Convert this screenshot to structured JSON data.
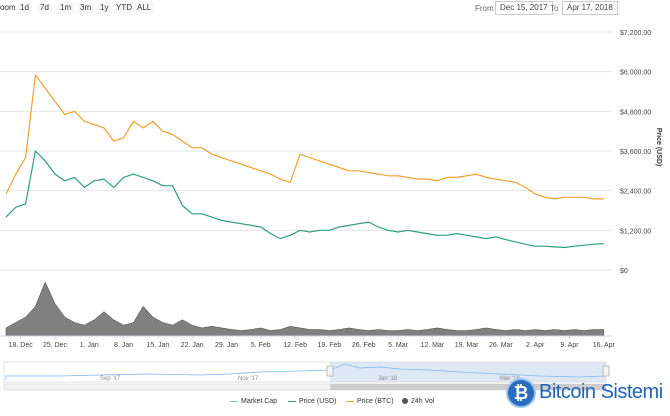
{
  "toolbar": {
    "zoom_label": "oom",
    "buttons": [
      "1d",
      "7d",
      "1m",
      "3m",
      "1y",
      "YTD",
      "ALL"
    ],
    "from_label": "From",
    "from_value": "Dec 15, 2017",
    "to_label": "To",
    "to_value": "Apr 17, 2018"
  },
  "watermark": {
    "text": "Bitcoin Sistemi"
  },
  "chart_data": {
    "type": "line",
    "x_labels": [
      "18. Dec",
      "25. Dec",
      "1. Jan",
      "8. Jan",
      "15. Jan",
      "22. Jan",
      "29. Jan",
      "5. Feb",
      "12. Feb",
      "19. Feb",
      "26. Feb",
      "5. Mar",
      "12. Mar",
      "19. Mar",
      "26. Mar",
      "2. Apr",
      "9. Apr",
      "16. Apr"
    ],
    "x_start_date": "2017-12-15",
    "y_right": {
      "label": "Price (USD)",
      "ticks": [
        "$0",
        "$1,200.00",
        "$2,400.00",
        "$3,600.00",
        "$4,800.00",
        "$6,000.00",
        "$7,200.00"
      ],
      "range": [
        0,
        7200
      ]
    },
    "navigator_labels": [
      "Sep '17",
      "Nov '17",
      "Jan '18",
      "Mar '18"
    ],
    "legend": [
      {
        "name": "Market Cap",
        "color": "#7cb5ec",
        "kind": "line"
      },
      {
        "name": "Price (USD)",
        "color": "#2f9e7e",
        "kind": "line"
      },
      {
        "name": "Price (BTC)",
        "color": "#f0a030",
        "kind": "line"
      },
      {
        "name": "24h Vol",
        "color": "#555555",
        "kind": "dot"
      }
    ],
    "series": [
      {
        "name": "Price (USD)",
        "color": "#2f9e7e",
        "days": [
          0,
          2,
          4,
          6,
          8,
          10,
          12,
          14,
          16,
          18,
          20,
          22,
          24,
          26,
          28,
          30,
          32,
          34,
          36,
          38,
          40,
          42,
          44,
          46,
          48,
          50,
          52,
          54,
          56,
          58,
          60,
          62,
          64,
          66,
          68,
          70,
          72,
          74,
          76,
          78,
          80,
          82,
          84,
          86,
          88,
          90,
          92,
          94,
          96,
          98,
          100,
          102,
          104,
          106,
          108,
          110,
          112,
          114,
          116,
          118,
          120,
          122
        ],
        "values": [
          1600,
          1900,
          2000,
          3600,
          3300,
          2900,
          2700,
          2800,
          2500,
          2700,
          2750,
          2500,
          2800,
          2900,
          2800,
          2700,
          2550,
          2550,
          1950,
          1700,
          1700,
          1600,
          1500,
          1450,
          1400,
          1350,
          1300,
          1100,
          950,
          1050,
          1200,
          1150,
          1200,
          1200,
          1300,
          1350,
          1400,
          1450,
          1300,
          1200,
          1150,
          1200,
          1150,
          1100,
          1050,
          1050,
          1100,
          1050,
          1000,
          950,
          1000,
          920,
          850,
          780,
          720,
          720,
          700,
          680,
          720,
          750,
          780,
          800
        ]
      },
      {
        "name": "Price (BTC)",
        "color": "#f0a030",
        "days": [
          0,
          2,
          4,
          6,
          8,
          10,
          12,
          14,
          16,
          18,
          20,
          22,
          24,
          26,
          28,
          30,
          32,
          34,
          36,
          38,
          40,
          42,
          44,
          46,
          48,
          50,
          52,
          54,
          56,
          58,
          60,
          62,
          64,
          66,
          68,
          70,
          72,
          74,
          76,
          78,
          80,
          82,
          84,
          86,
          88,
          90,
          92,
          94,
          96,
          98,
          100,
          102,
          104,
          106,
          108,
          110,
          112,
          114,
          116,
          118,
          120,
          122
        ],
        "values": [
          2300,
          2900,
          3400,
          5900,
          5500,
          5100,
          4700,
          4800,
          4500,
          4400,
          4300,
          3900,
          4000,
          4500,
          4300,
          4500,
          4200,
          4100,
          3900,
          3700,
          3700,
          3500,
          3400,
          3300,
          3200,
          3100,
          3000,
          2900,
          2750,
          2650,
          3500,
          3400,
          3300,
          3200,
          3100,
          3000,
          3000,
          2950,
          2900,
          2850,
          2850,
          2800,
          2750,
          2750,
          2700,
          2800,
          2800,
          2850,
          2900,
          2800,
          2750,
          2700,
          2650,
          2500,
          2300,
          2200,
          2150,
          2200,
          2200,
          2200,
          2150,
          2150
        ]
      },
      {
        "name": "24h Vol",
        "color": "#555555",
        "days": [
          0,
          2,
          4,
          6,
          8,
          10,
          12,
          14,
          16,
          18,
          20,
          22,
          24,
          26,
          28,
          30,
          32,
          34,
          36,
          38,
          40,
          42,
          44,
          46,
          48,
          50,
          52,
          54,
          56,
          58,
          60,
          62,
          64,
          66,
          68,
          70,
          72,
          74,
          76,
          78,
          80,
          82,
          84,
          86,
          88,
          90,
          92,
          94,
          96,
          98,
          100,
          102,
          104,
          106,
          108,
          110,
          112,
          114,
          116,
          118,
          120,
          122
        ],
        "values": [
          0.15,
          0.25,
          0.35,
          0.55,
          1.0,
          0.6,
          0.35,
          0.25,
          0.2,
          0.3,
          0.45,
          0.3,
          0.2,
          0.25,
          0.55,
          0.35,
          0.25,
          0.2,
          0.3,
          0.2,
          0.15,
          0.18,
          0.15,
          0.12,
          0.1,
          0.12,
          0.15,
          0.1,
          0.12,
          0.18,
          0.15,
          0.12,
          0.12,
          0.1,
          0.12,
          0.15,
          0.12,
          0.1,
          0.12,
          0.1,
          0.1,
          0.12,
          0.1,
          0.12,
          0.15,
          0.12,
          0.1,
          0.1,
          0.12,
          0.15,
          0.12,
          0.1,
          0.12,
          0.1,
          0.12,
          0.1,
          0.12,
          0.1,
          0.12,
          0.1,
          0.12,
          0.12
        ]
      }
    ],
    "grid": true,
    "legend_placement": "bottom"
  }
}
